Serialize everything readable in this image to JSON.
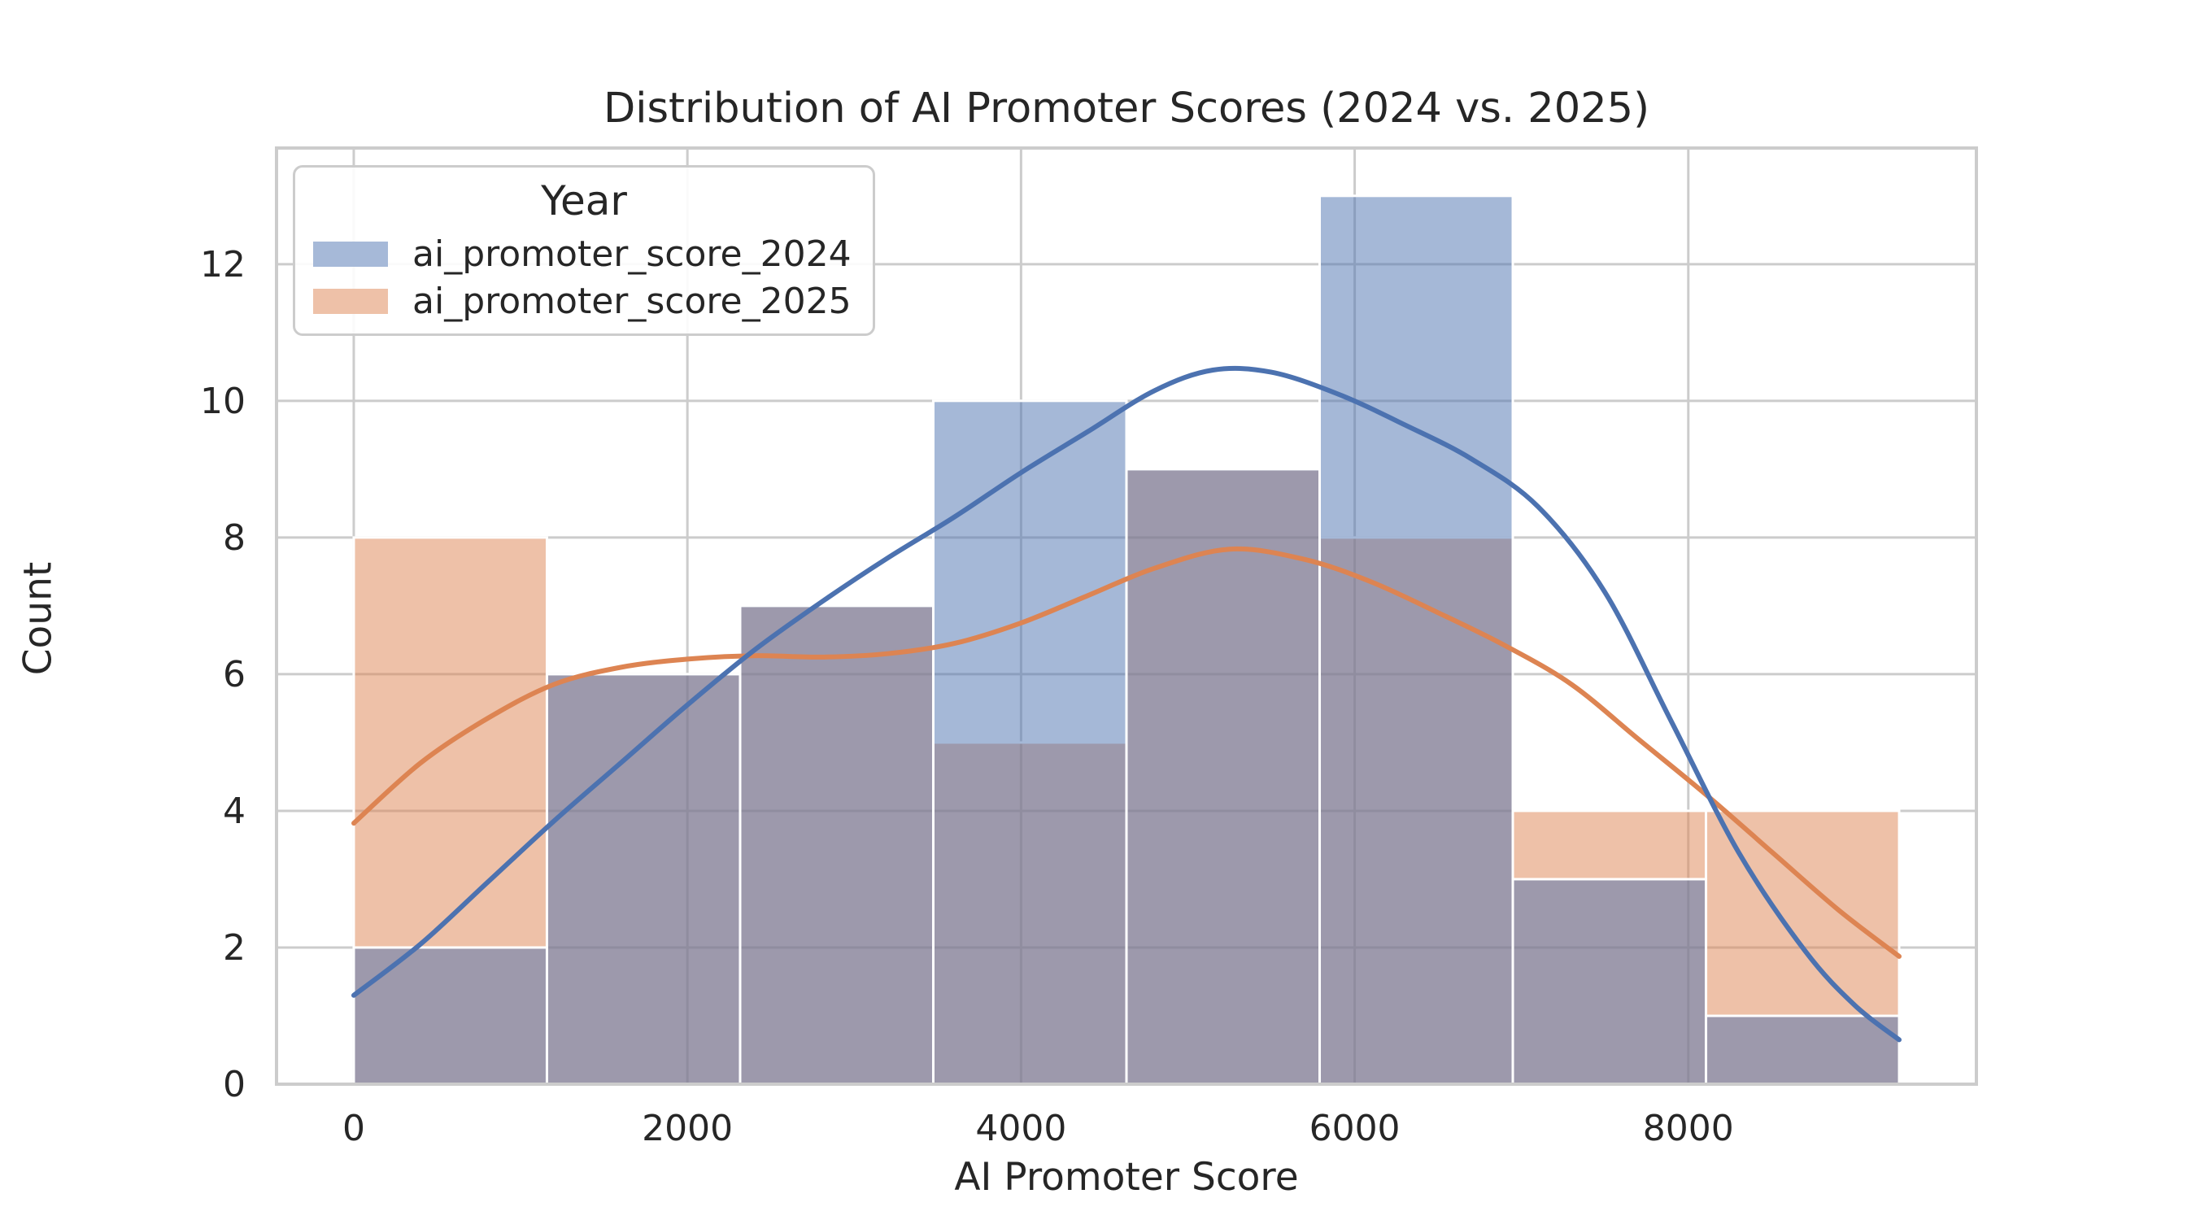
{
  "title": "Distribution of AI Promoter Scores (2024 vs. 2025)",
  "xlabel": "AI Promoter Score",
  "ylabel": "Count",
  "legend": {
    "title": "Year",
    "entries": [
      {
        "label": "ai_promoter_score_2024",
        "swatch_color": "#a6b9d8"
      },
      {
        "label": "ai_promoter_score_2025",
        "swatch_color": "#eec1a8"
      }
    ]
  },
  "colors": {
    "blue_line": "#4c72b0",
    "orange_line": "#dd8452",
    "blue_bar_fill": "#4c72b0",
    "orange_bar_fill": "#dd8452",
    "bar_fill_opacity": 0.5,
    "bar_edge": "#ffffff",
    "grid": "#cccccc",
    "spine": "#cccccc",
    "text": "#262626"
  },
  "chart_data": {
    "type": "histogram+kde",
    "title": "Distribution of AI Promoter Scores (2024 vs. 2025)",
    "xlabel": "AI Promoter Score",
    "ylabel": "Count",
    "grid": true,
    "legend_position": "upper left",
    "xlim": [
      -463,
      9727
    ],
    "ylim": [
      0,
      13.7
    ],
    "x_ticks": [
      0,
      2000,
      4000,
      6000,
      8000
    ],
    "y_ticks": [
      0,
      2,
      4,
      6,
      8,
      10,
      12
    ],
    "bin_edges": [
      0,
      1158,
      2316,
      3474,
      4632,
      5790,
      6948,
      8106,
      9264
    ],
    "series": [
      {
        "name": "ai_promoter_score_2024",
        "color": "#4c72b0",
        "counts": [
          2,
          6,
          7,
          10,
          9,
          13,
          3,
          1
        ],
        "kde": [
          [
            0,
            1.3
          ],
          [
            400,
            2.05
          ],
          [
            800,
            2.95
          ],
          [
            1200,
            3.85
          ],
          [
            1600,
            4.7
          ],
          [
            2000,
            5.55
          ],
          [
            2400,
            6.35
          ],
          [
            2800,
            7.05
          ],
          [
            3200,
            7.7
          ],
          [
            3600,
            8.3
          ],
          [
            4000,
            8.95
          ],
          [
            4400,
            9.55
          ],
          [
            4800,
            10.15
          ],
          [
            5150,
            10.45
          ],
          [
            5500,
            10.42
          ],
          [
            5900,
            10.1
          ],
          [
            6300,
            9.65
          ],
          [
            6700,
            9.15
          ],
          [
            7100,
            8.45
          ],
          [
            7500,
            7.2
          ],
          [
            7900,
            5.3
          ],
          [
            8300,
            3.4
          ],
          [
            8700,
            1.95
          ],
          [
            9000,
            1.15
          ],
          [
            9264,
            0.65
          ]
        ]
      },
      {
        "name": "ai_promoter_score_2025",
        "color": "#dd8452",
        "counts": [
          8,
          6,
          7,
          5,
          9,
          8,
          4,
          4
        ],
        "kde": [
          [
            0,
            3.82
          ],
          [
            400,
            4.7
          ],
          [
            800,
            5.35
          ],
          [
            1200,
            5.85
          ],
          [
            1600,
            6.1
          ],
          [
            2000,
            6.22
          ],
          [
            2400,
            6.27
          ],
          [
            2800,
            6.25
          ],
          [
            3200,
            6.3
          ],
          [
            3600,
            6.45
          ],
          [
            4000,
            6.75
          ],
          [
            4400,
            7.15
          ],
          [
            4800,
            7.55
          ],
          [
            5250,
            7.83
          ],
          [
            5700,
            7.68
          ],
          [
            6100,
            7.35
          ],
          [
            6500,
            6.9
          ],
          [
            6900,
            6.42
          ],
          [
            7300,
            5.85
          ],
          [
            7700,
            5.05
          ],
          [
            8100,
            4.25
          ],
          [
            8500,
            3.4
          ],
          [
            8900,
            2.55
          ],
          [
            9264,
            1.87
          ]
        ]
      }
    ]
  }
}
